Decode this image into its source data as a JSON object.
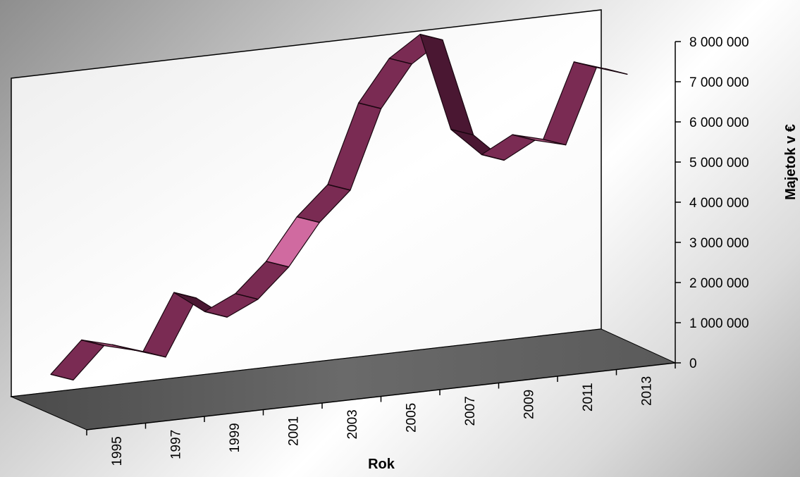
{
  "chart_data": {
    "type": "area",
    "view": "3d-ribbon",
    "categories": [
      "1995",
      "1996",
      "1997",
      "1998",
      "1999",
      "2000",
      "2001",
      "2002",
      "2003",
      "2004",
      "2005",
      "2006",
      "2007",
      "2008",
      "2009",
      "2010",
      "2011",
      "2012",
      "2013"
    ],
    "x_tick_labels": [
      "1995",
      "1997",
      "1999",
      "2001",
      "2003",
      "2005",
      "2007",
      "2009",
      "2011",
      "2013"
    ],
    "values": [
      150000,
      900000,
      700000,
      450000,
      1800000,
      1250000,
      1600000,
      2300000,
      3300000,
      4000000,
      5900000,
      6900000,
      7400000,
      5000000,
      4300000,
      4700000,
      4500000,
      6300000,
      6050000
    ],
    "series": [
      {
        "values": [
          150000,
          900000,
          700000,
          450000,
          1800000,
          1250000,
          1600000,
          2300000,
          3300000,
          4000000,
          5900000,
          6900000,
          7400000,
          5000000,
          4300000,
          4700000,
          4500000,
          6300000,
          6050000
        ]
      }
    ],
    "y_tick_labels": [
      "0",
      "1 000 000",
      "2 000 000",
      "3 000 000",
      "4 000 000",
      "5 000 000",
      "6 000 000",
      "7 000 000",
      "8 000 000"
    ],
    "ylim": [
      0,
      8000000
    ],
    "xlabel": "Rok",
    "ylabel": "Majetok v €",
    "title": "",
    "grid": false,
    "legend": "none",
    "colors": {
      "ribbon_top": "#9a4a70",
      "ribbon_front": "#7a2b53",
      "ribbon_dark": "#4a1732",
      "ribbon_highlight": "#d06aa0",
      "back_wall": "#ffffff",
      "floor": "#555555"
    }
  }
}
